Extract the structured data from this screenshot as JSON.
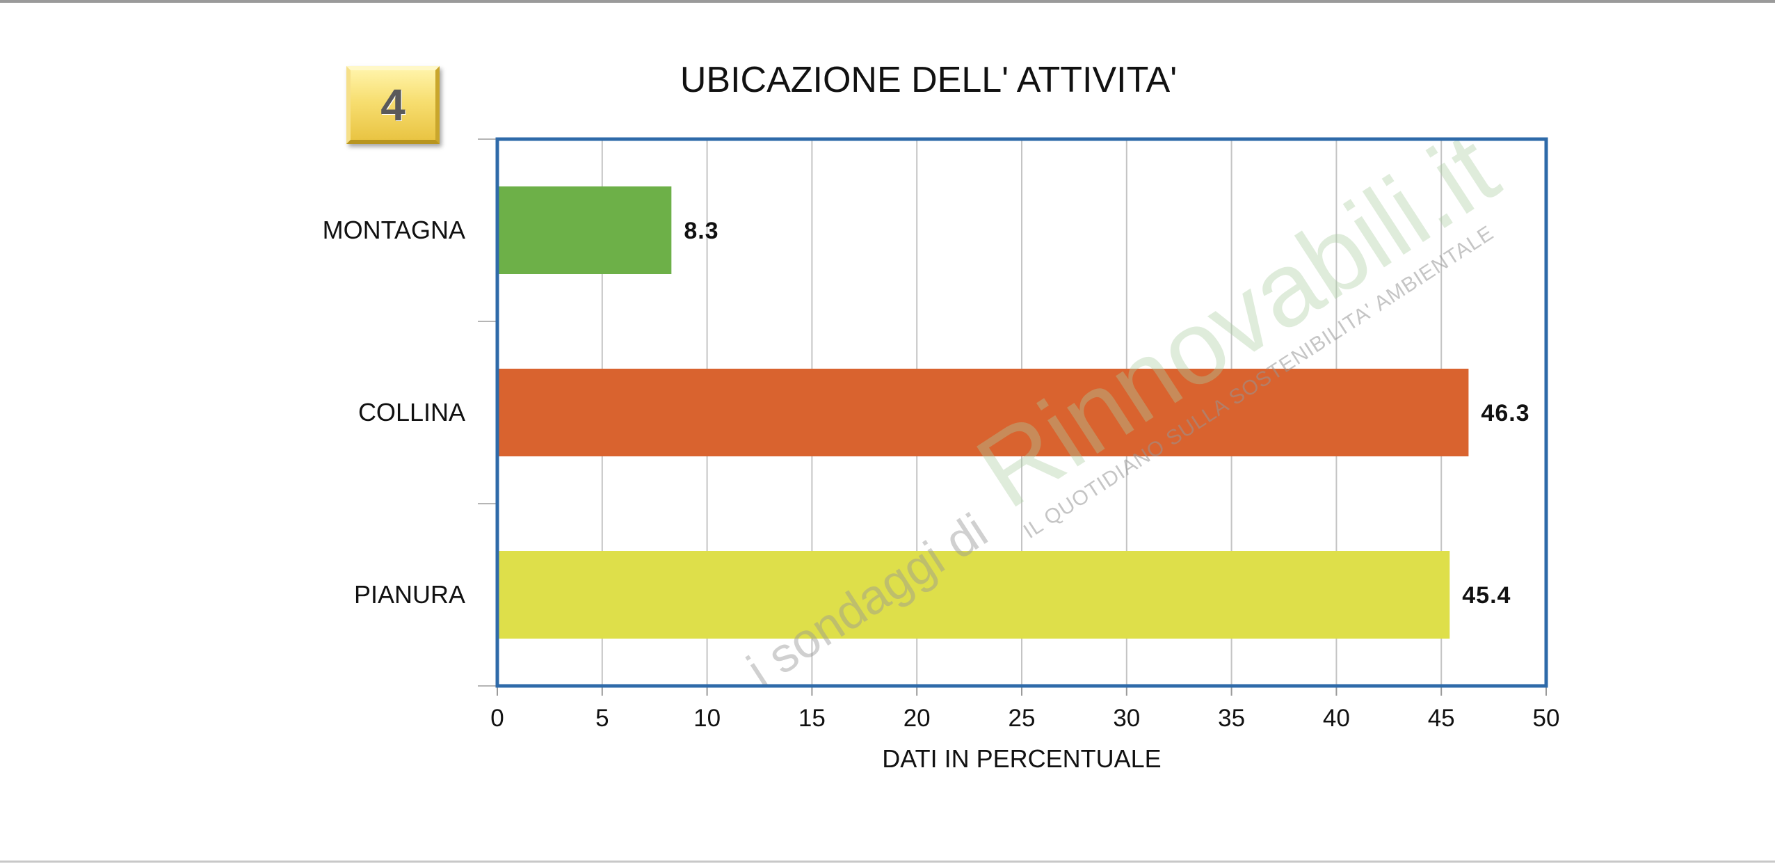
{
  "badge": {
    "number": "4"
  },
  "chart_data": {
    "type": "bar",
    "orientation": "horizontal",
    "title": "UBICAZIONE DELL' ATTIVITA'",
    "categories": [
      "MONTAGNA",
      "COLLINA",
      "PIANURA"
    ],
    "values": [
      8.3,
      46.3,
      45.4
    ],
    "value_labels": [
      "8.3",
      "46.3",
      "45.4"
    ],
    "colors": [
      "#6db048",
      "#d9632f",
      "#dedf4a"
    ],
    "xlabel": "DATI IN PERCENTUALE",
    "ylabel": "",
    "xlim": [
      0,
      50
    ],
    "xticks": [
      "0",
      "5",
      "10",
      "15",
      "20",
      "25",
      "30",
      "35",
      "40",
      "45",
      "50"
    ],
    "grid": "vertical",
    "legend": "none",
    "frame_color": "#2e6aa9",
    "grid_color": "#c4c4c4"
  },
  "watermark": {
    "prefix": "i sondaggi di",
    "brand": "Rinnovabili.it",
    "tagline": "IL QUOTIDIANO SULLA SOSTENIBILITA' AMBIENTALE"
  }
}
